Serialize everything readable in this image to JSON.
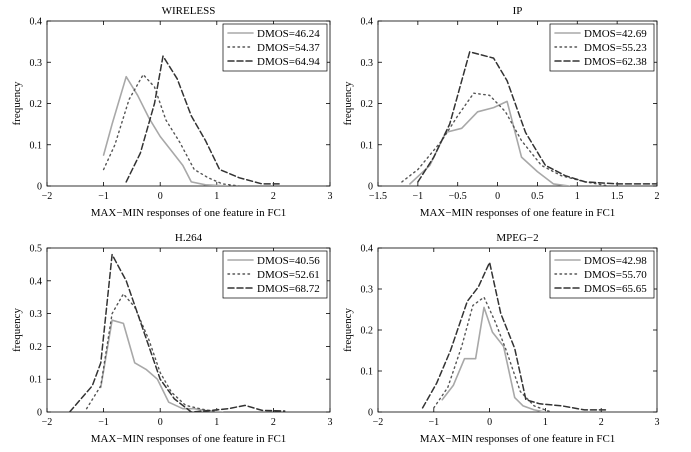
{
  "chart_data": [
    {
      "type": "line",
      "title": "WIRELESS",
      "xlabel": "MAX−MIN responses of one feature in FC1",
      "ylabel": "frequency",
      "xlim": [
        -2,
        3
      ],
      "ylim": [
        0,
        0.4
      ],
      "xticks": [
        -2,
        -1,
        0,
        1,
        2,
        3
      ],
      "xtick_labels": [
        "−2",
        "−1",
        "0",
        "1",
        "2",
        "3"
      ],
      "yticks": [
        0,
        0.1,
        0.2,
        0.3,
        0.4
      ],
      "ytick_labels": [
        "0",
        "0.1",
        "0.2",
        "0.3",
        "0.4"
      ],
      "legend_position": "top-right",
      "series": [
        {
          "name": "DMOS=46.24",
          "style": "solid",
          "color": "#a8a8a8",
          "x": [
            -1.0,
            -0.85,
            -0.6,
            -0.4,
            -0.2,
            0.0,
            0.2,
            0.4,
            0.55,
            0.8,
            1.2
          ],
          "y": [
            0.075,
            0.15,
            0.265,
            0.22,
            0.165,
            0.12,
            0.085,
            0.05,
            0.01,
            0.003,
            0.0
          ]
        },
        {
          "name": "DMOS=54.37",
          "style": "dotted",
          "color": "#555555",
          "x": [
            -1.0,
            -0.8,
            -0.55,
            -0.3,
            -0.1,
            0.1,
            0.35,
            0.6,
            0.85,
            1.1,
            1.4
          ],
          "y": [
            0.04,
            0.1,
            0.21,
            0.27,
            0.24,
            0.16,
            0.105,
            0.04,
            0.02,
            0.005,
            0.0
          ]
        },
        {
          "name": "DMOS=64.94",
          "style": "dashed",
          "color": "#333333",
          "x": [
            -0.6,
            -0.35,
            -0.1,
            0.05,
            0.3,
            0.55,
            0.8,
            1.05,
            1.4,
            1.8,
            2.1
          ],
          "y": [
            0.01,
            0.08,
            0.2,
            0.315,
            0.26,
            0.17,
            0.11,
            0.04,
            0.02,
            0.005,
            0.005
          ]
        }
      ]
    },
    {
      "type": "line",
      "title": "IP",
      "xlabel": "MAX−MIN responses of one feature in FC1",
      "ylabel": "frequency",
      "xlim": [
        -1.5,
        2
      ],
      "ylim": [
        0,
        0.4
      ],
      "xticks": [
        -1.5,
        -1,
        -0.5,
        0,
        0.5,
        1,
        1.5,
        2
      ],
      "xtick_labels": [
        "−1.5",
        "−1",
        "−0.5",
        "0",
        "0.5",
        "1",
        "1.5",
        "2"
      ],
      "yticks": [
        0,
        0.1,
        0.2,
        0.3,
        0.4
      ],
      "ytick_labels": [
        "0",
        "0.1",
        "0.2",
        "0.3",
        "0.4"
      ],
      "legend_position": "top-right",
      "series": [
        {
          "name": "DMOS=42.69",
          "style": "solid",
          "color": "#a8a8a8",
          "x": [
            -1.1,
            -0.85,
            -0.65,
            -0.45,
            -0.25,
            -0.05,
            0.12,
            0.3,
            0.5,
            0.7,
            0.9
          ],
          "y": [
            0.005,
            0.05,
            0.13,
            0.14,
            0.18,
            0.19,
            0.205,
            0.07,
            0.035,
            0.005,
            0.0
          ]
        },
        {
          "name": "DMOS=55.23",
          "style": "dotted",
          "color": "#555555",
          "x": [
            -1.2,
            -1.0,
            -0.7,
            -0.5,
            -0.3,
            -0.1,
            0.1,
            0.3,
            0.55,
            0.8,
            1.1,
            1.4
          ],
          "y": [
            0.01,
            0.04,
            0.11,
            0.17,
            0.225,
            0.22,
            0.18,
            0.11,
            0.05,
            0.025,
            0.01,
            0.0
          ]
        },
        {
          "name": "DMOS=62.38",
          "style": "dashed",
          "color": "#333333",
          "x": [
            -1.0,
            -0.8,
            -0.6,
            -0.35,
            -0.05,
            0.12,
            0.35,
            0.6,
            0.85,
            1.1,
            1.5,
            2.0
          ],
          "y": [
            0.01,
            0.07,
            0.15,
            0.325,
            0.31,
            0.255,
            0.13,
            0.05,
            0.025,
            0.01,
            0.005,
            0.005
          ]
        }
      ]
    },
    {
      "type": "line",
      "title": "H.264",
      "xlabel": "MAX−MIN responses of one feature in FC1",
      "ylabel": "frequency",
      "xlim": [
        -2,
        3
      ],
      "ylim": [
        0,
        0.5
      ],
      "xticks": [
        -2,
        -1,
        0,
        1,
        2,
        3
      ],
      "xtick_labels": [
        "−2",
        "−1",
        "0",
        "1",
        "2",
        "3"
      ],
      "yticks": [
        0,
        0.1,
        0.2,
        0.3,
        0.4,
        0.5
      ],
      "ytick_labels": [
        "0",
        "0.1",
        "0.2",
        "0.3",
        "0.4",
        "0.5"
      ],
      "legend_position": "top-right",
      "series": [
        {
          "name": "DMOS=40.56",
          "style": "solid",
          "color": "#a8a8a8",
          "x": [
            -1.05,
            -0.85,
            -0.65,
            -0.45,
            -0.25,
            -0.05,
            0.15,
            0.4,
            0.6,
            0.8,
            1.1
          ],
          "y": [
            0.075,
            0.28,
            0.27,
            0.15,
            0.13,
            0.1,
            0.03,
            0.01,
            0.01,
            0.005,
            0.0
          ]
        },
        {
          "name": "DMOS=52.61",
          "style": "dotted",
          "color": "#555555",
          "x": [
            -1.3,
            -1.05,
            -0.85,
            -0.65,
            -0.45,
            -0.2,
            0.0,
            0.2,
            0.45,
            0.7,
            1.0
          ],
          "y": [
            0.01,
            0.08,
            0.3,
            0.36,
            0.32,
            0.22,
            0.12,
            0.06,
            0.02,
            0.01,
            0.0
          ]
        },
        {
          "name": "DMOS=68.72",
          "style": "dashed",
          "color": "#333333",
          "x": [
            -1.6,
            -1.2,
            -1.05,
            -0.85,
            -0.6,
            -0.4,
            -0.2,
            0.0,
            0.25,
            0.55,
            0.9,
            1.2,
            1.5,
            1.8,
            2.2
          ],
          "y": [
            0.0,
            0.08,
            0.15,
            0.48,
            0.4,
            0.3,
            0.2,
            0.1,
            0.04,
            0.0,
            0.005,
            0.01,
            0.02,
            0.005,
            0.003
          ]
        }
      ]
    },
    {
      "type": "line",
      "title": "MPEG−2",
      "xlabel": "MAX−MIN responses of one feature in FC1",
      "ylabel": "frequency",
      "xlim": [
        -2,
        3
      ],
      "ylim": [
        0,
        0.4
      ],
      "xticks": [
        -2,
        -1,
        0,
        1,
        2,
        3
      ],
      "xtick_labels": [
        "−2",
        "−1",
        "0",
        "1",
        "2",
        "3"
      ],
      "yticks": [
        0,
        0.1,
        0.2,
        0.3,
        0.4
      ],
      "ytick_labels": [
        "0",
        "0.1",
        "0.2",
        "0.3",
        "0.4"
      ],
      "legend_position": "top-right",
      "series": [
        {
          "name": "DMOS=42.98",
          "style": "solid",
          "color": "#a8a8a8",
          "x": [
            -0.85,
            -0.65,
            -0.45,
            -0.25,
            -0.1,
            0.05,
            0.25,
            0.45,
            0.6,
            0.8,
            1.0
          ],
          "y": [
            0.03,
            0.065,
            0.13,
            0.13,
            0.255,
            0.195,
            0.16,
            0.035,
            0.015,
            0.005,
            0.0
          ]
        },
        {
          "name": "DMOS=55.70",
          "style": "dotted",
          "color": "#555555",
          "x": [
            -1.0,
            -0.75,
            -0.5,
            -0.3,
            -0.1,
            0.1,
            0.3,
            0.55,
            0.8,
            1.1
          ],
          "y": [
            0.01,
            0.06,
            0.16,
            0.26,
            0.28,
            0.22,
            0.15,
            0.05,
            0.015,
            0.0
          ]
        },
        {
          "name": "DMOS=65.65",
          "style": "dashed",
          "color": "#333333",
          "x": [
            -1.2,
            -0.95,
            -0.7,
            -0.4,
            -0.2,
            0.0,
            0.2,
            0.45,
            0.65,
            0.9,
            1.3,
            1.7,
            2.1
          ],
          "y": [
            0.01,
            0.07,
            0.15,
            0.27,
            0.305,
            0.365,
            0.24,
            0.155,
            0.03,
            0.02,
            0.015,
            0.005,
            0.005
          ]
        }
      ]
    }
  ]
}
